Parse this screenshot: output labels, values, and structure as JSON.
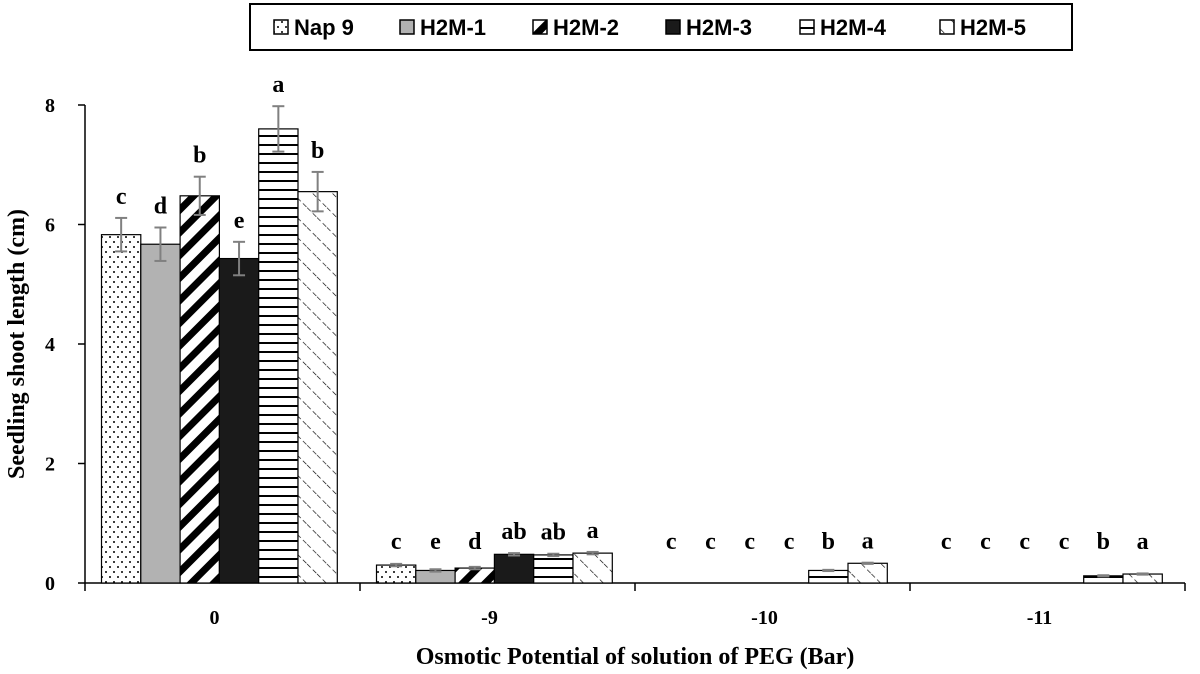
{
  "chart_data": {
    "type": "bar",
    "title": "",
    "xlabel": "Osmotic Potential of solution of PEG (Bar)",
    "ylabel": "Seedling shoot length (cm)",
    "ylim": [
      0,
      8
    ],
    "yticks": [
      "0",
      "2",
      "4",
      "6",
      "8"
    ],
    "categories": [
      "0",
      "-9",
      "-10",
      "-11"
    ],
    "legend_position": "top-center",
    "error_bars": true,
    "series": [
      {
        "name": "Nap 9",
        "pattern": "dots",
        "values": [
          5.83,
          0.3,
          0,
          0
        ],
        "errors": [
          0.28,
          0.02,
          0,
          0
        ],
        "letters": [
          "c",
          "c",
          "c",
          "c"
        ]
      },
      {
        "name": "H2M-1",
        "pattern": "gray",
        "values": [
          5.67,
          0.21,
          0,
          0
        ],
        "errors": [
          0.28,
          0.02,
          0,
          0
        ],
        "letters": [
          "d",
          "e",
          "c",
          "c"
        ]
      },
      {
        "name": "H2M-2",
        "pattern": "diag-thick",
        "values": [
          6.48,
          0.25,
          0,
          0
        ],
        "errors": [
          0.32,
          0.02,
          0,
          0
        ],
        "letters": [
          "b",
          "d",
          "c",
          "c"
        ]
      },
      {
        "name": "H2M-3",
        "pattern": "black",
        "values": [
          5.43,
          0.48,
          0,
          0
        ],
        "errors": [
          0.28,
          0.02,
          0,
          0
        ],
        "letters": [
          "e",
          "ab",
          "c",
          "c"
        ]
      },
      {
        "name": "H2M-4",
        "pattern": "hstripes",
        "values": [
          7.6,
          0.47,
          0.21,
          0.12
        ],
        "errors": [
          0.38,
          0.02,
          0.01,
          0.01
        ],
        "letters": [
          "a",
          "ab",
          "b",
          "b"
        ]
      },
      {
        "name": "H2M-5",
        "pattern": "diag-light",
        "values": [
          6.55,
          0.5,
          0.33,
          0.15
        ],
        "errors": [
          0.33,
          0.02,
          0.01,
          0.01
        ],
        "letters": [
          "b",
          "a",
          "a",
          "a"
        ]
      }
    ]
  },
  "colors": {
    "axis": "#000000",
    "error_bar": "#808080",
    "gray_fill": "#b2b2b2",
    "black_fill": "#1a1a1a"
  }
}
